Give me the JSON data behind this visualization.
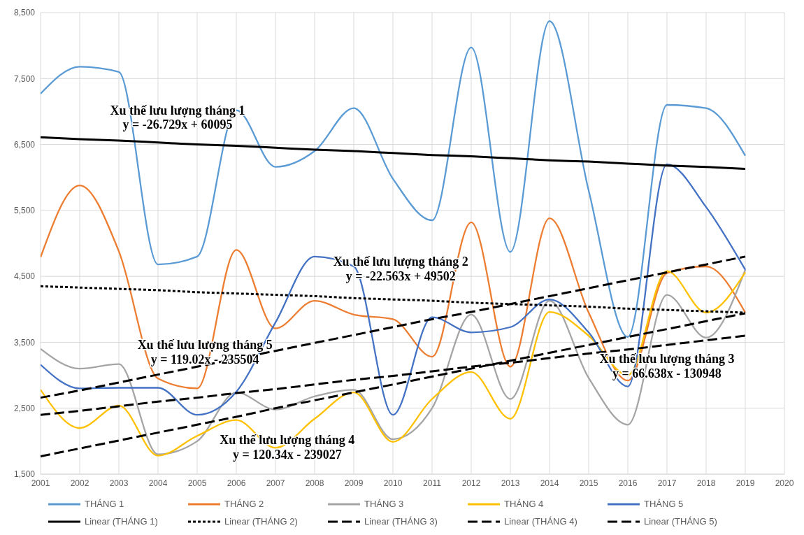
{
  "chart_data": {
    "type": "line",
    "x": [
      2001,
      2002,
      2003,
      2004,
      2005,
      2006,
      2007,
      2008,
      2009,
      2010,
      2011,
      2012,
      2013,
      2014,
      2015,
      2016,
      2017,
      2018,
      2019
    ],
    "xlim": [
      2001,
      2020
    ],
    "xticks": [
      2001,
      2002,
      2003,
      2004,
      2005,
      2006,
      2007,
      2008,
      2009,
      2010,
      2011,
      2012,
      2013,
      2014,
      2015,
      2016,
      2017,
      2018,
      2019,
      2020
    ],
    "ylim": [
      1500,
      8500
    ],
    "yticks": [
      {
        "value": 1500,
        "label": "1,500"
      },
      {
        "value": 2500,
        "label": "2,500"
      },
      {
        "value": 3500,
        "label": "3,500"
      },
      {
        "value": 4500,
        "label": "4,500"
      },
      {
        "value": 5500,
        "label": "5,500"
      },
      {
        "value": 6500,
        "label": "6,500"
      },
      {
        "value": 7500,
        "label": "7,500"
      },
      {
        "value": 8500,
        "label": "8,500"
      }
    ],
    "grid": true,
    "legend": "bottom",
    "marker": "none",
    "series": [
      {
        "name": "THÁNG 1",
        "color": "#5b9bd5",
        "values": [
          7270,
          7680,
          7600,
          4680,
          4800,
          7020,
          6160,
          6400,
          7050,
          5980,
          5350,
          7970,
          4870,
          8370,
          5800,
          3580,
          7100,
          7050,
          6330
        ]
      },
      {
        "name": "THÁNG 2",
        "color": "#ed7d31",
        "values": [
          4790,
          5880,
          4880,
          2950,
          2800,
          4900,
          3710,
          4130,
          3920,
          3850,
          3280,
          5320,
          3130,
          5380,
          3950,
          2920,
          4550,
          4650,
          3950
        ]
      },
      {
        "name": "THÁNG 3",
        "color": "#a5a5a5",
        "values": [
          3400,
          3100,
          3170,
          1800,
          2000,
          2740,
          2480,
          2680,
          2780,
          2030,
          2500,
          3920,
          2640,
          4130,
          2960,
          2250,
          4220,
          3570,
          4600
        ]
      },
      {
        "name": "THÁNG 4",
        "color": "#ffc000",
        "values": [
          2780,
          2200,
          2540,
          1780,
          2080,
          2320,
          1900,
          2340,
          2740,
          1990,
          2640,
          3050,
          2340,
          3960,
          3600,
          3000,
          4580,
          3950,
          4560
        ]
      },
      {
        "name": "THÁNG 5",
        "color": "#4472c4",
        "values": [
          3160,
          2800,
          2810,
          2810,
          2400,
          2750,
          3800,
          4800,
          4650,
          2400,
          3880,
          3650,
          3730,
          4150,
          3650,
          2830,
          6200,
          5550,
          4600
        ]
      },
      {
        "name": "Linear (THÁNG 1)",
        "color": "#000000",
        "line_style": "solid",
        "values": [
          6610,
          6580,
          6560,
          6530,
          6500,
          6480,
          6450,
          6420,
          6400,
          6370,
          6340,
          6320,
          6290,
          6260,
          6240,
          6210,
          6180,
          6160,
          6130
        ]
      },
      {
        "name": "Linear (THÁNG 2)",
        "color": "#000000",
        "line_style": "dotted",
        "values": [
          4350,
          4330,
          4310,
          4290,
          4260,
          4240,
          4220,
          4200,
          4170,
          4150,
          4130,
          4100,
          4080,
          4060,
          4040,
          4010,
          3990,
          3970,
          3950
        ]
      },
      {
        "name": "Linear (THÁNG 3)",
        "color": "#000000",
        "line_style": "dashed",
        "values": [
          2400,
          2460,
          2530,
          2600,
          2660,
          2730,
          2790,
          2860,
          2930,
          2990,
          3060,
          3130,
          3190,
          3260,
          3330,
          3390,
          3460,
          3530,
          3600
        ]
      },
      {
        "name": "Linear (THÁNG 4)",
        "color": "#000000",
        "line_style": "dashed",
        "values": [
          1770,
          1890,
          2010,
          2130,
          2250,
          2370,
          2500,
          2620,
          2740,
          2860,
          2980,
          3100,
          3220,
          3340,
          3460,
          3580,
          3700,
          3820,
          3940
        ]
      },
      {
        "name": "Linear (THÁNG 5)",
        "color": "#000000",
        "line_style": "dashed",
        "values": [
          2660,
          2770,
          2890,
          3010,
          3130,
          3250,
          3370,
          3490,
          3610,
          3730,
          3850,
          3960,
          4080,
          4200,
          4320,
          4440,
          4560,
          4680,
          4800
        ]
      }
    ],
    "annotations": [
      "Xu thế lưu lượng tháng 1",
      "y = -26.729x + 60095",
      "Xu thế lưu lượng tháng 2",
      "y = -22.563x + 49502",
      "Xu thế lưu lượng tháng 5",
      "y = 119.02x - 235504",
      "Xu thế lưu lượng tháng 4",
      "y = 120.34x - 239027",
      "Xu thế lưu lượng tháng 3",
      "y = 66.638x - 130948"
    ]
  }
}
